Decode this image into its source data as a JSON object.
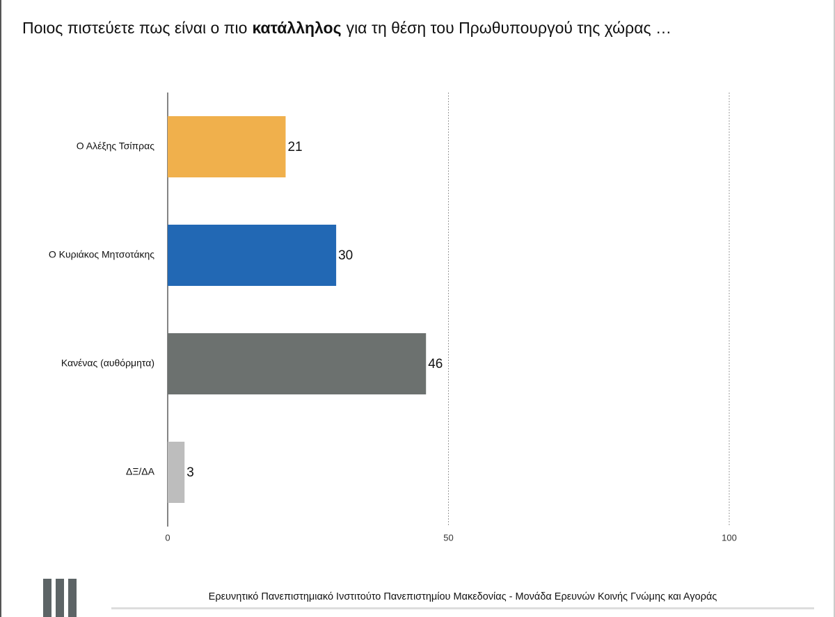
{
  "chart_data": {
    "type": "barh",
    "title": [
      "Ποιος πιστεύετε πως είναι ο πιο",
      "κατάλληλος",
      "για τη θέση του Πρωθυπουργού της χώρας …"
    ],
    "categories": [
      "Ο Αλέξης Τσίπρας",
      "Ο Κυριάκος Μητσοτάκης",
      "Κανένας (αυθόρμητα)",
      "ΔΞ/ΔΑ"
    ],
    "values": [
      21,
      30,
      46,
      3
    ],
    "colors": [
      "#f0b04c",
      "#2268b4",
      "#6c716f",
      "#bdbdbd"
    ],
    "xlim": [
      0,
      100
    ],
    "xticks": [
      0,
      50,
      100
    ],
    "grid": true,
    "source": "Ερευνητικό Πανεπιστημιακό Ινστιτούτο Πανεπιστημίου Μακεδονίας - Μονάδα Ερευνών Κοινής Γνώμης και Αγοράς"
  }
}
